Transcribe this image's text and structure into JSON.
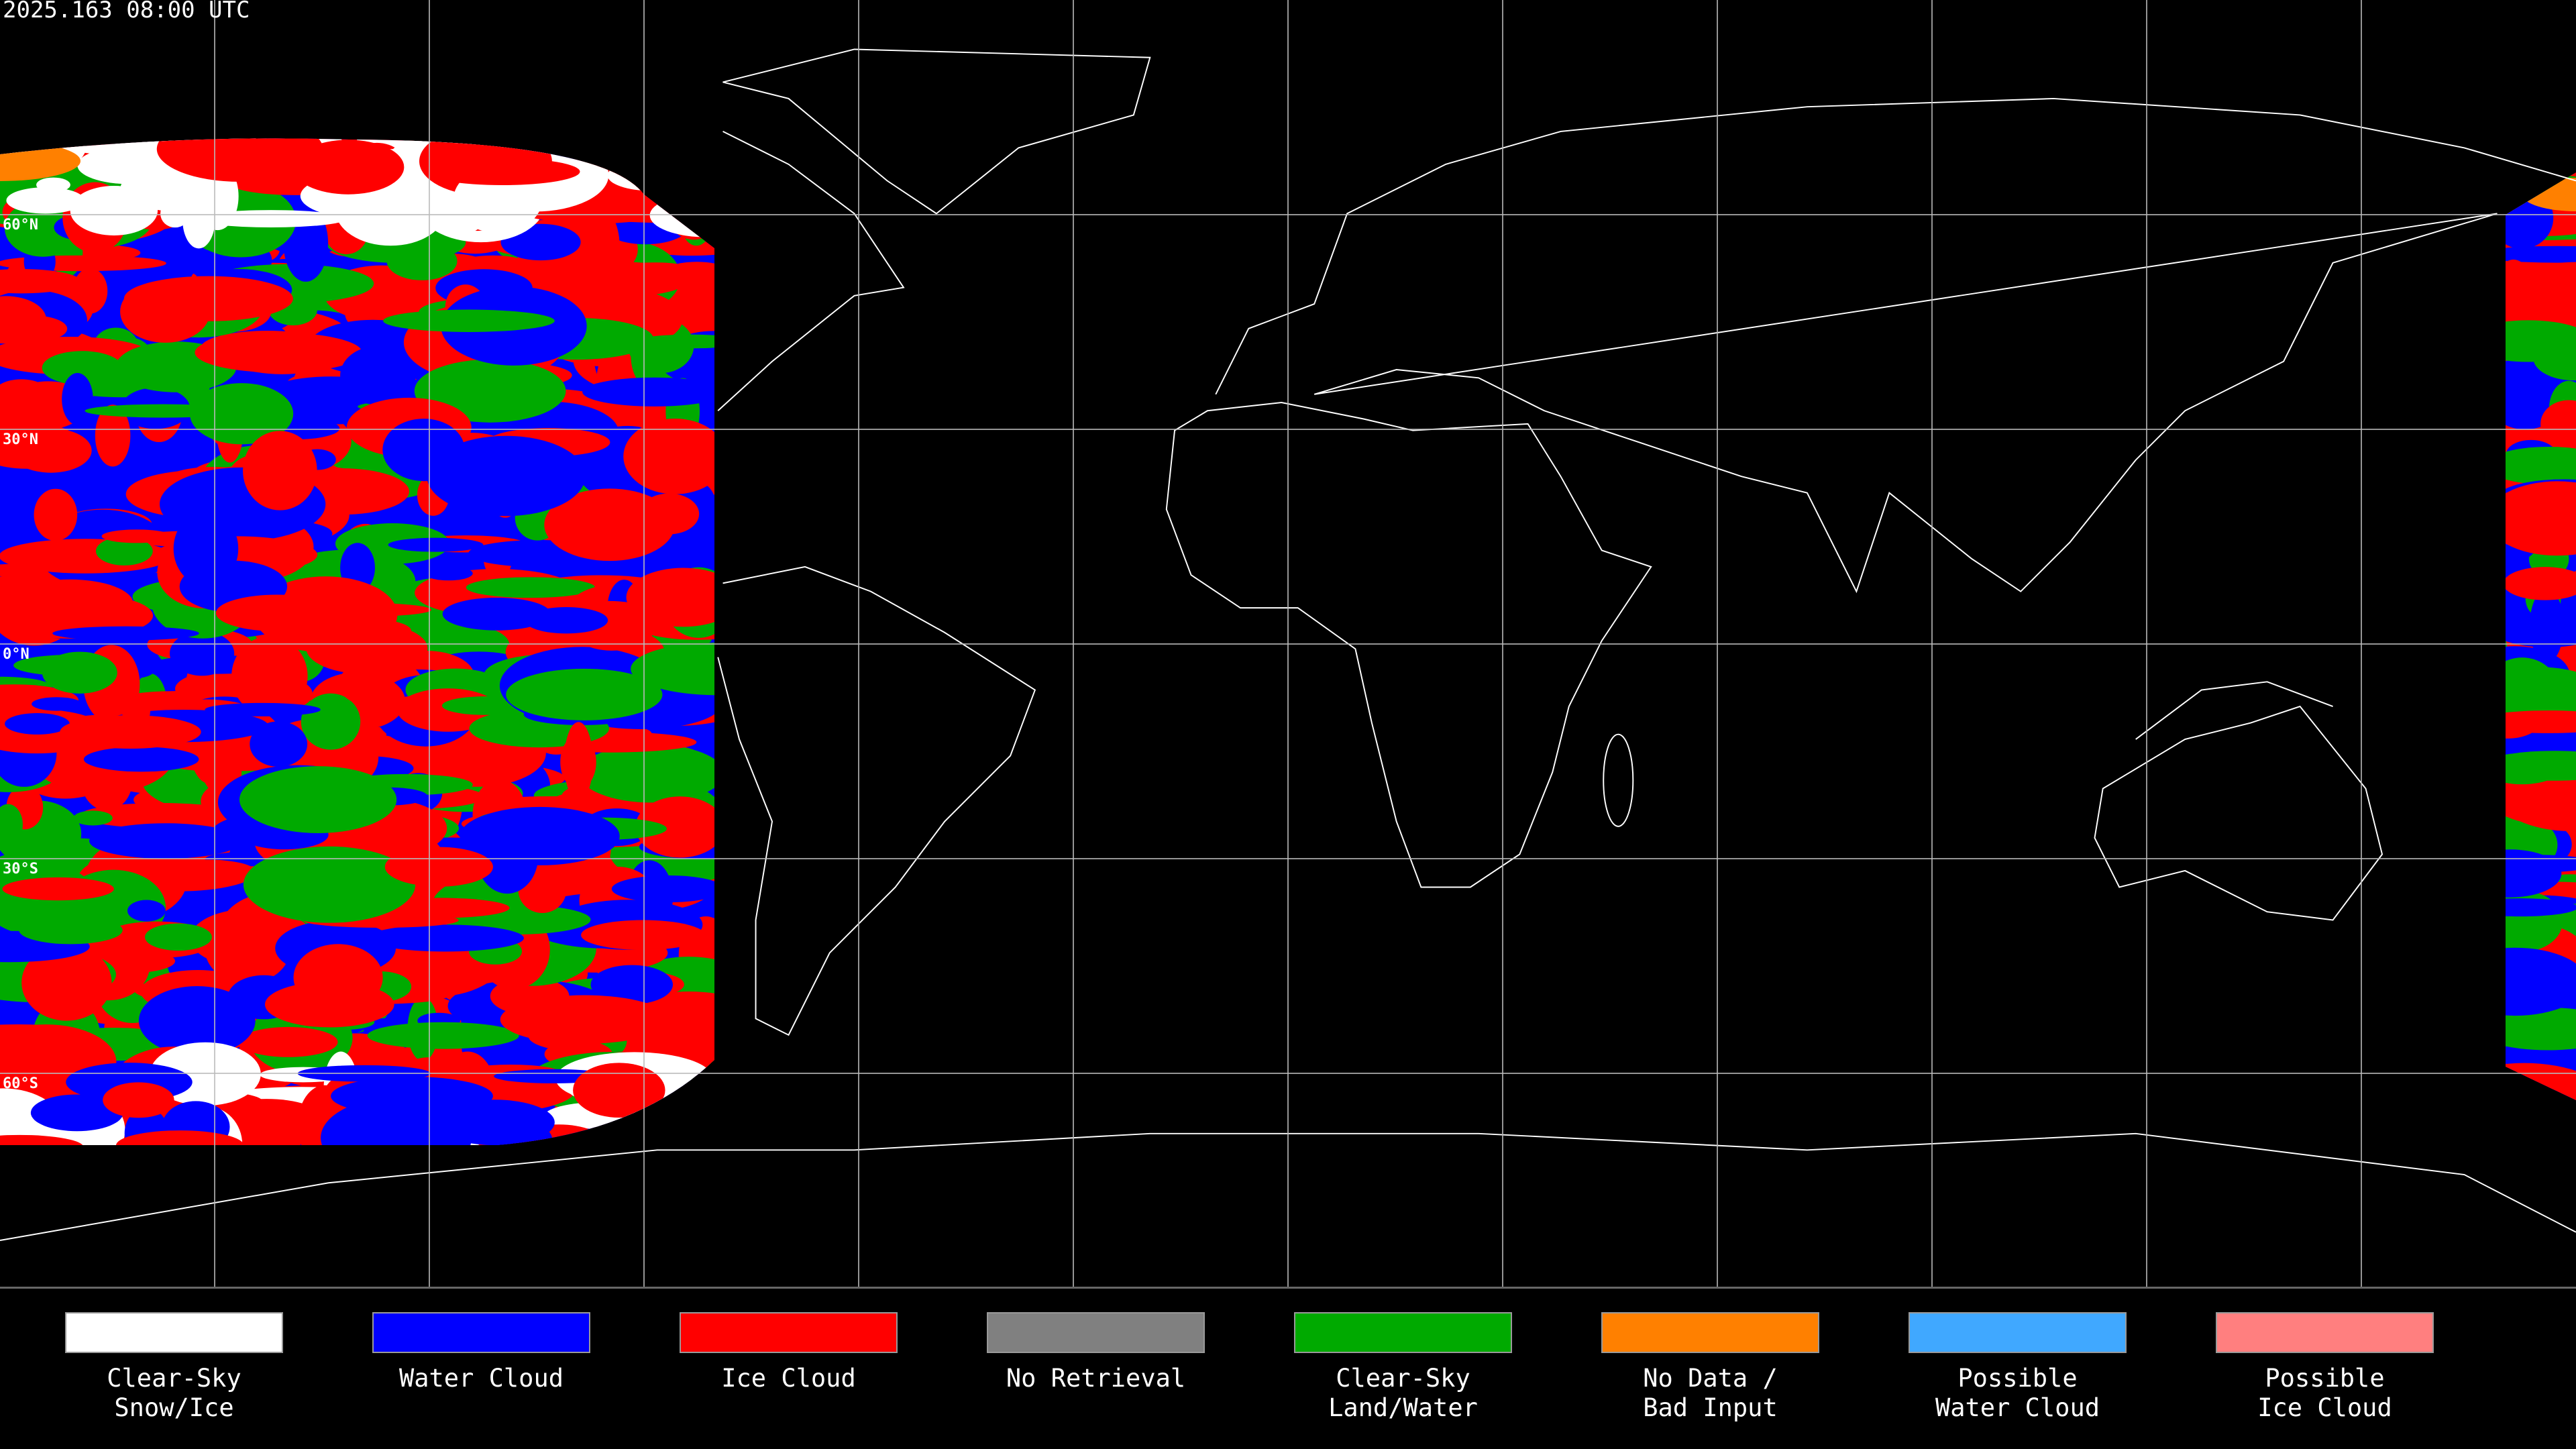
{
  "header": {
    "timestamp": "2025.163 08:00 UTC"
  },
  "map": {
    "latitude_labels": [
      "60°N",
      "30°N",
      "0°N",
      "30°S",
      "60°S"
    ]
  },
  "legend": {
    "items": [
      {
        "lines": [
          "Clear-Sky",
          "Snow/Ice"
        ],
        "color": "#ffffff"
      },
      {
        "lines": [
          "Water Cloud"
        ],
        "color": "#0000ff"
      },
      {
        "lines": [
          "Ice Cloud"
        ],
        "color": "#ff0000"
      },
      {
        "lines": [
          "No Retrieval"
        ],
        "color": "#808080"
      },
      {
        "lines": [
          "Clear-Sky",
          "Land/Water"
        ],
        "color": "#00aa00"
      },
      {
        "lines": [
          "No Data /",
          "Bad Input"
        ],
        "color": "#ff8000"
      },
      {
        "lines": [
          "Possible",
          "Water Cloud"
        ],
        "color": "#40a8ff"
      },
      {
        "lines": [
          "Possible",
          "Ice Cloud"
        ],
        "color": "#ff7f7f"
      }
    ]
  }
}
